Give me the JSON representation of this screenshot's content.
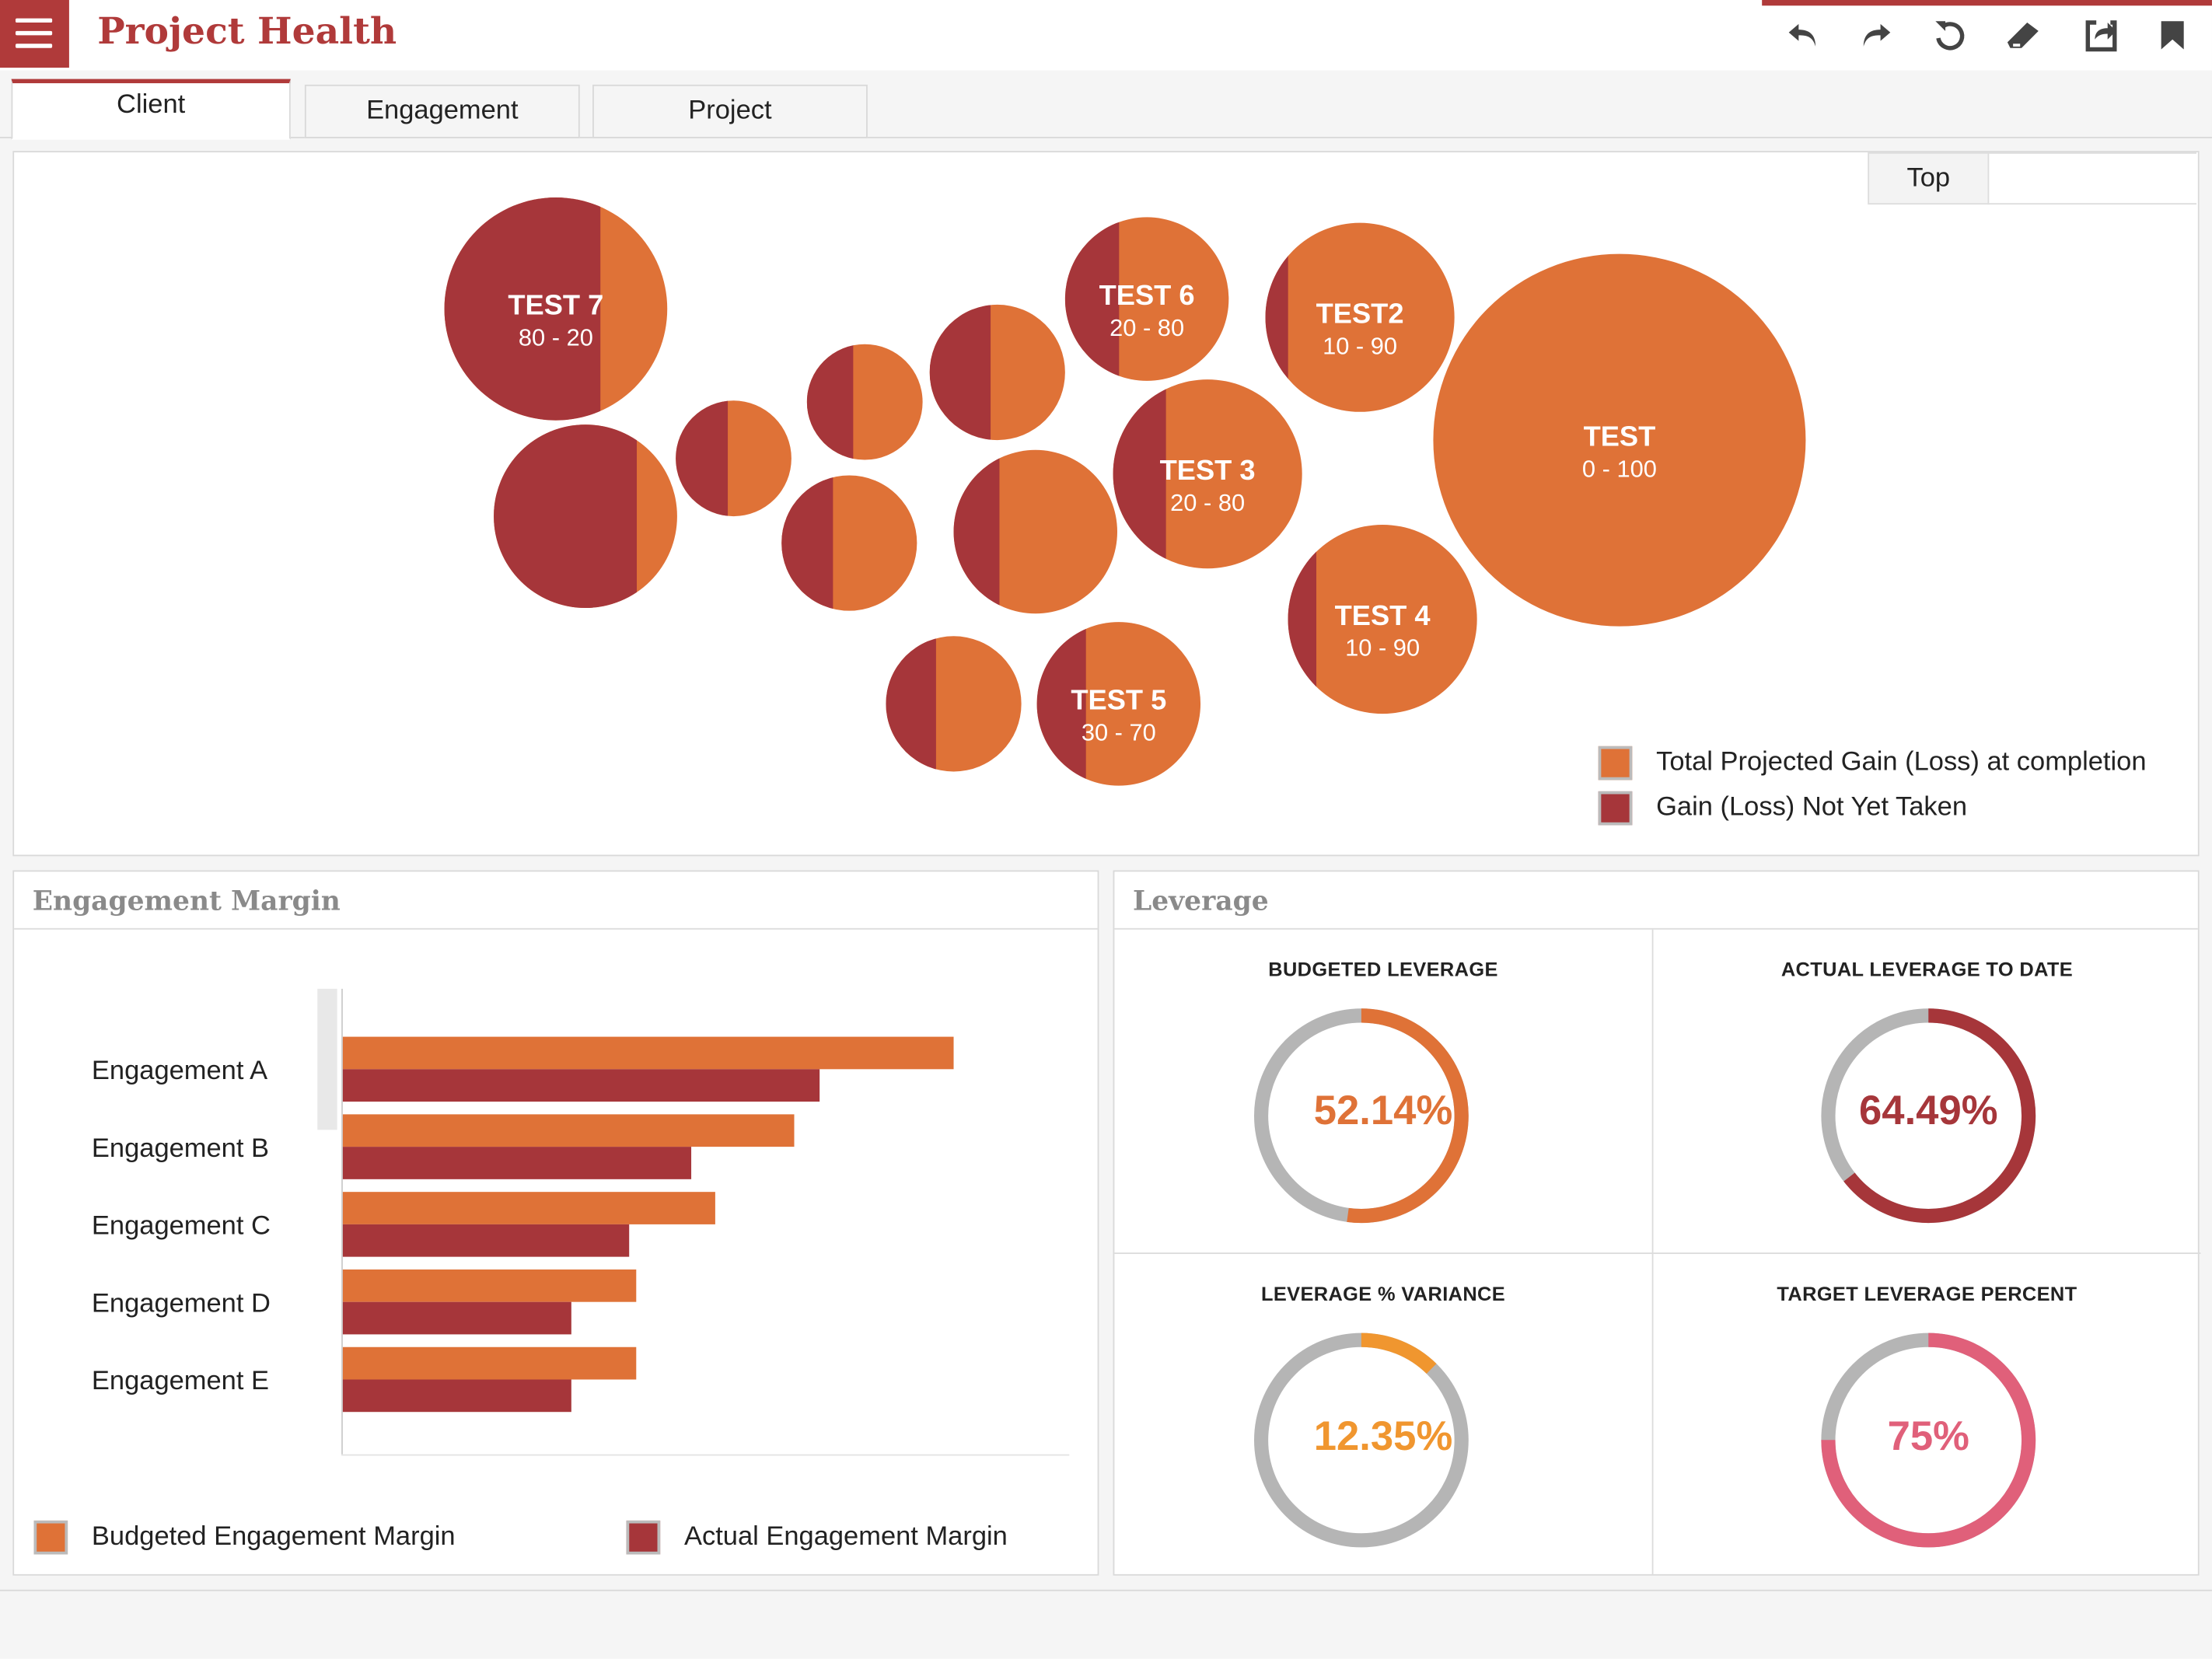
{
  "header": {
    "title": "Project Health",
    "tools": [
      "undo-icon",
      "redo-icon",
      "refresh-icon",
      "eraser-icon",
      "share-icon",
      "bookmark-icon"
    ]
  },
  "tabs": [
    {
      "label": "Client",
      "active": true
    },
    {
      "label": "Engagement",
      "active": false
    },
    {
      "label": "Project",
      "active": false
    }
  ],
  "bubble_panel": {
    "top_button": "Top",
    "legend": [
      {
        "label": "Total Projected Gain (Loss) at completion",
        "color": "#df7237"
      },
      {
        "label": "Gain (Loss) Not Yet Taken",
        "color": "#a6363a"
      }
    ]
  },
  "bubbles": [
    {
      "name": "TEST 7",
      "range": "80 - 20",
      "dark_pct": 70
    },
    {
      "name": "",
      "range": "",
      "dark_pct": 78
    },
    {
      "name": "",
      "range": "",
      "dark_pct": 45
    },
    {
      "name": "",
      "range": "",
      "dark_pct": 40
    },
    {
      "name": "",
      "range": "",
      "dark_pct": 45
    },
    {
      "name": "",
      "range": "",
      "dark_pct": 38
    },
    {
      "name": "TEST 6",
      "range": "20 - 80",
      "dark_pct": 33
    },
    {
      "name": "TEST2",
      "range": "10 - 90",
      "dark_pct": 12
    },
    {
      "name": "TEST 3",
      "range": "20 - 80",
      "dark_pct": 28
    },
    {
      "name": "",
      "range": "",
      "dark_pct": 28
    },
    {
      "name": "TEST",
      "range": "0 - 100",
      "dark_pct": 0
    },
    {
      "name": "TEST 4",
      "range": "10 - 90",
      "dark_pct": 15
    },
    {
      "name": "",
      "range": "",
      "dark_pct": 37
    },
    {
      "name": "TEST 5",
      "range": "30 - 70",
      "dark_pct": 30
    }
  ],
  "engagement_margin": {
    "title": "Engagement Margin",
    "legend": [
      {
        "label": "Budgeted Engagement Margin",
        "color": "#df7237"
      },
      {
        "label": "Actual Engagement Margin",
        "color": "#a6363a"
      }
    ]
  },
  "chart_data": {
    "type": "bar",
    "orientation": "horizontal",
    "categories": [
      "Engagement A",
      "Engagement B",
      "Engagement C",
      "Engagement D",
      "Engagement E"
    ],
    "series": [
      {
        "name": "Budgeted Engagement Margin",
        "color": "#df7237",
        "values": [
          100,
          74,
          61,
          48,
          48
        ]
      },
      {
        "name": "Actual Engagement Margin",
        "color": "#a6363a",
        "values": [
          78,
          57,
          47,
          37.5,
          37.5
        ]
      }
    ],
    "xlim": [
      0,
      119
    ],
    "grid": false,
    "legend_position": "bottom"
  },
  "leverage": {
    "title": "Leverage",
    "gauges": [
      {
        "title": "BUDGETED LEVERAGE",
        "value_text": "52.14%",
        "value": 52.14,
        "color": "#df7237"
      },
      {
        "title": "ACTUAL LEVERAGE TO DATE",
        "value_text": "64.49%",
        "value": 64.49,
        "color": "#a6363a"
      },
      {
        "title": "LEVERAGE % VARIANCE",
        "value_text": "12.35%",
        "value": 12.35,
        "color": "#f0962f"
      },
      {
        "title": "TARGET LEVERAGE PERCENT",
        "value_text": "75%",
        "value": 75,
        "color": "#e0607a"
      }
    ]
  }
}
